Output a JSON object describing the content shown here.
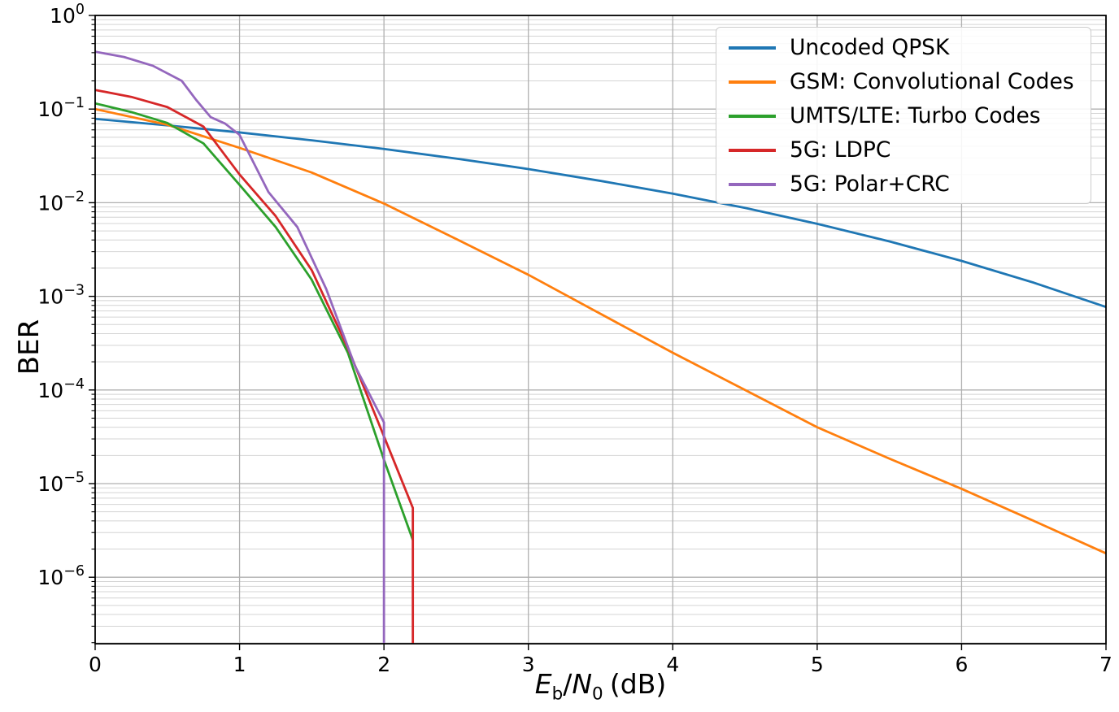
{
  "chart_data": {
    "type": "line",
    "title": "",
    "ylabel": "BER",
    "xlabel_parts": {
      "var_e": "E",
      "sub_b": "b",
      "slash": "/",
      "var_n": "N",
      "sub_0": "0",
      "unit": "(dB)"
    },
    "xlim": [
      0,
      7
    ],
    "x_ticks": [
      0,
      1,
      2,
      3,
      4,
      5,
      6,
      7
    ],
    "y_scale": "log",
    "y_tick_exponents": [
      0,
      -1,
      -2,
      -3,
      -4,
      -5,
      -6
    ],
    "ylim_exponents": [
      0,
      -6.71
    ],
    "grid": "both",
    "legend_position": "upper right",
    "grid_major_color": "#b0b0b0",
    "grid_minor_color": "#d4d4d4",
    "series": [
      {
        "name": "Uncoded QPSK",
        "color": "#1f77b4",
        "drop_to_floor": false,
        "x": [
          0,
          0.5,
          1,
          1.5,
          2,
          2.5,
          3,
          3.5,
          4,
          4.5,
          5,
          5.5,
          6,
          6.5,
          7
        ],
        "y": [
          0.0786,
          0.067,
          0.0563,
          0.0464,
          0.0375,
          0.0296,
          0.0229,
          0.0171,
          0.0125,
          0.0088,
          0.00595,
          0.00386,
          0.00239,
          0.0014,
          0.00077
        ]
      },
      {
        "name": "GSM: Convolutional Codes",
        "color": "#ff7f0e",
        "drop_to_floor": false,
        "x": [
          0,
          0.5,
          1,
          1.5,
          2,
          2.5,
          3,
          3.5,
          4,
          4.5,
          5,
          5.5,
          6,
          6.5,
          7
        ],
        "y": [
          0.1,
          0.068,
          0.0385,
          0.021,
          0.0098,
          0.0041,
          0.0017,
          0.00065,
          0.00025,
          0.0001,
          4e-05,
          1.85e-05,
          8.8e-06,
          4e-06,
          1.8e-06
        ]
      },
      {
        "name": "UMTS/LTE: Turbo Codes",
        "color": "#2ca02c",
        "drop_to_floor": false,
        "x": [
          0,
          0.25,
          0.5,
          0.75,
          1.0,
          1.25,
          1.5,
          1.75,
          2.0,
          2.2
        ],
        "y": [
          0.115,
          0.093,
          0.071,
          0.043,
          0.0155,
          0.0055,
          0.0015,
          0.00025,
          1.8e-05,
          2.5e-06
        ]
      },
      {
        "name": "5G: LDPC",
        "color": "#d62728",
        "drop_to_floor": true,
        "x": [
          0,
          0.25,
          0.5,
          0.75,
          1.0,
          1.25,
          1.5,
          1.75,
          2.0,
          2.2
        ],
        "y": [
          0.16,
          0.135,
          0.105,
          0.065,
          0.02,
          0.0072,
          0.0019,
          0.00028,
          3.2e-05,
          5.5e-06
        ]
      },
      {
        "name": "5G: Polar+CRC",
        "color": "#9467bd",
        "drop_to_floor": true,
        "x": [
          0,
          0.2,
          0.4,
          0.6,
          0.7,
          0.8,
          0.9,
          1.0,
          1.2,
          1.4,
          1.6,
          1.8,
          2.0
        ],
        "y": [
          0.41,
          0.36,
          0.29,
          0.2,
          0.125,
          0.082,
          0.07,
          0.053,
          0.013,
          0.0055,
          0.0012,
          0.00018,
          4.5e-05
        ]
      }
    ]
  }
}
